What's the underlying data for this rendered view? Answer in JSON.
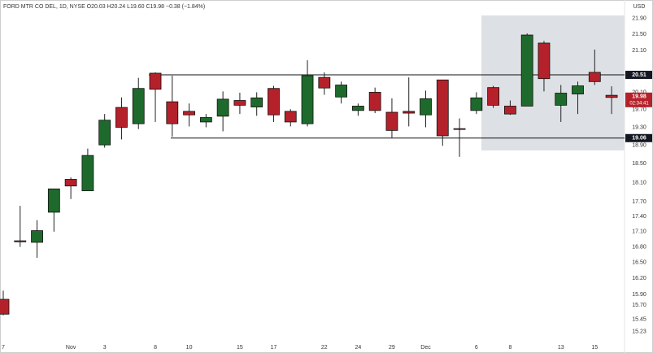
{
  "chart_data": {
    "type": "candlestick",
    "title": "FORD MTR CO DEL, 1D, NYSE  O20.03 H20.24 L19.60 C19.98 −0.38 (−1.84%)",
    "currency": "USD",
    "categories": [
      "7",
      null,
      null,
      null,
      "Nov",
      null,
      "3",
      null,
      null,
      "8",
      null,
      "10",
      null,
      null,
      "15",
      null,
      "17",
      null,
      null,
      "22",
      null,
      "24",
      null,
      "29",
      null,
      "Dec",
      null,
      null,
      "6",
      null,
      "8",
      null,
      null,
      "13",
      null,
      "15",
      null
    ],
    "open": [
      15.81,
      16.92,
      16.89,
      17.49,
      18.17,
      17.93,
      18.91,
      19.75,
      19.38,
      20.55,
      19.88,
      19.66,
      19.42,
      19.55,
      19.91,
      19.76,
      20.19,
      19.66,
      19.38,
      20.45,
      19.99,
      19.68,
      20.1,
      19.64,
      19.66,
      19.58,
      20.39,
      19.27,
      19.68,
      20.21,
      19.78,
      19.78,
      21.28,
      19.8,
      20.06,
      20.57,
      20.03
    ],
    "high": [
      15.97,
      17.62,
      17.33,
      17.97,
      18.21,
      18.83,
      19.6,
      19.98,
      20.44,
      20.57,
      20.49,
      19.84,
      19.6,
      20.12,
      20.09,
      20.1,
      20.25,
      19.71,
      20.86,
      20.57,
      20.35,
      19.84,
      20.21,
      19.96,
      20.45,
      20.14,
      20.39,
      19.5,
      20.1,
      20.25,
      19.91,
      21.52,
      21.33,
      20.27,
      20.35,
      21.12,
      20.24
    ],
    "low": [
      15.52,
      16.8,
      16.59,
      17.1,
      17.76,
      17.93,
      18.85,
      19.03,
      19.26,
      19.42,
      19.09,
      19.32,
      19.3,
      19.21,
      19.6,
      19.56,
      19.42,
      19.32,
      19.32,
      20.04,
      19.84,
      19.56,
      19.62,
      19.07,
      19.32,
      19.3,
      18.89,
      18.65,
      19.6,
      19.74,
      19.58,
      19.78,
      20.12,
      19.42,
      19.6,
      20.27,
      19.6
    ],
    "close": [
      15.54,
      16.9,
      17.12,
      17.97,
      18.03,
      18.68,
      19.46,
      19.3,
      20.19,
      20.17,
      19.38,
      19.58,
      19.52,
      19.94,
      19.8,
      19.97,
      19.58,
      19.42,
      20.49,
      20.2,
      20.27,
      19.78,
      19.68,
      19.23,
      19.62,
      19.95,
      19.11,
      19.26,
      19.97,
      19.8,
      19.6,
      21.48,
      20.42,
      20.08,
      20.25,
      20.35,
      19.98
    ],
    "up_color": "#1e6a2c",
    "down_color": "#b5212a",
    "log_scale": true,
    "ylim": [
      14.94,
      22.37
    ],
    "yticks": [
      {
        "value": 21.9,
        "label": "21.90"
      },
      {
        "value": 21.5,
        "label": "21.50"
      },
      {
        "value": 21.1,
        "label": "21.10"
      },
      {
        "value": 20.1,
        "label": "20.10"
      },
      {
        "value": 19.7,
        "label": "19.70"
      },
      {
        "value": 19.3,
        "label": "19.30"
      },
      {
        "value": 18.9,
        "label": "18.90"
      },
      {
        "value": 18.5,
        "label": "18.50"
      },
      {
        "value": 18.1,
        "label": "18.10"
      },
      {
        "value": 17.7,
        "label": "17.70"
      },
      {
        "value": 17.4,
        "label": "17.40"
      },
      {
        "value": 17.1,
        "label": "17.10"
      },
      {
        "value": 16.8,
        "label": "16.80"
      },
      {
        "value": 16.5,
        "label": "16.50"
      },
      {
        "value": 16.2,
        "label": "16.20"
      },
      {
        "value": 15.9,
        "label": "15.90"
      },
      {
        "value": 15.7,
        "label": "15.70"
      },
      15.45,
      15.23
    ],
    "levels": [
      20.51,
      19.06
    ],
    "price_marker": {
      "value": 19.98,
      "countdown": "02:34:41"
    }
  }
}
